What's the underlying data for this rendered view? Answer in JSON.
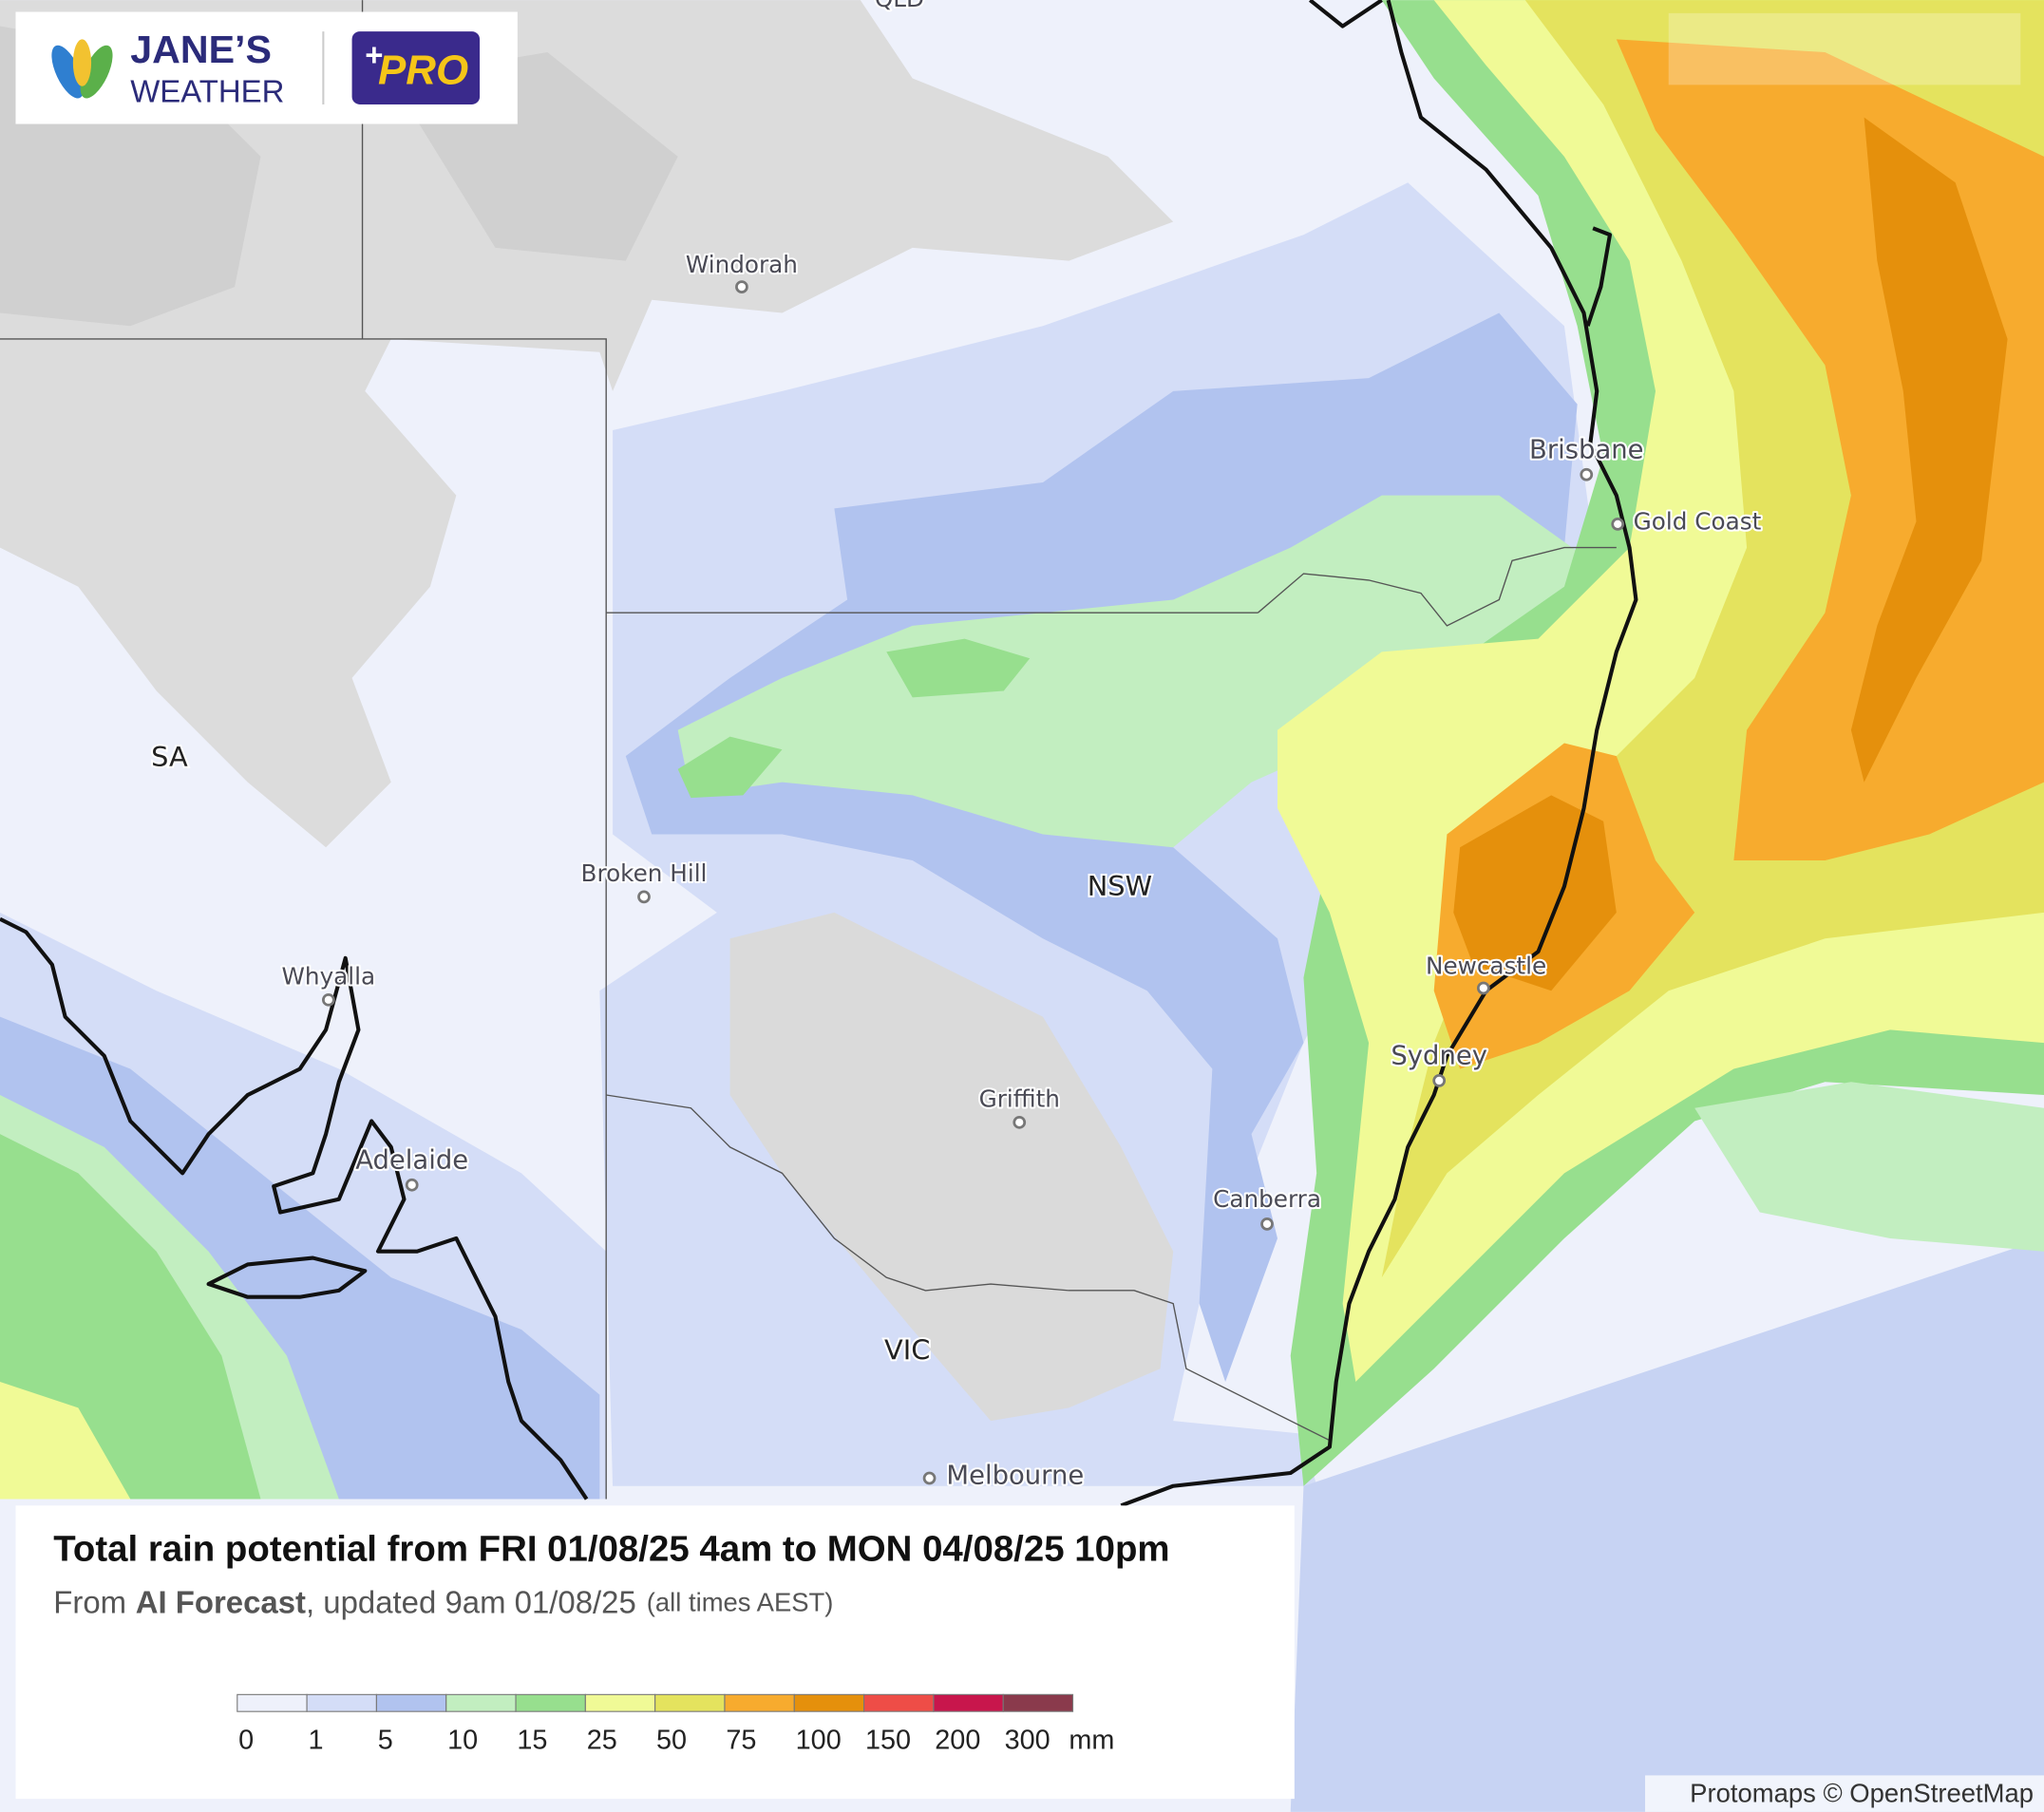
{
  "header": {
    "brand_line1": "JANE’S",
    "brand_line2": "WEATHER",
    "badge_plus": "+",
    "badge": "PRO"
  },
  "places": [
    "QLD",
    "Windorah",
    "Brisbane",
    "Gold Coast",
    "SA",
    "Broken Hill",
    "NSW",
    "Whyalla",
    "Newcastle",
    "Sydney",
    "Griffith",
    "Adelaide",
    "Canberra",
    "VIC",
    "Melbourne"
  ],
  "legend": {
    "title": "Total rain potential from FRI 01/08/25 4am to MON 04/08/25 10pm",
    "source_prefix": "From",
    "source": "AI Forecast",
    "updated": ", updated 9am 01/08/25",
    "timezone": "(all times AEST)",
    "items": [
      {
        "label": "0",
        "color": "#eef1fb"
      },
      {
        "label": "1",
        "color": "#d4ddf7"
      },
      {
        "label": "5",
        "color": "#b1c3ef"
      },
      {
        "label": "10",
        "color": "#c2eec0"
      },
      {
        "label": "15",
        "color": "#97df8e"
      },
      {
        "label": "25",
        "color": "#f0fa96"
      },
      {
        "label": "50",
        "color": "#e4e35e"
      },
      {
        "label": "75",
        "color": "#f7ab2e"
      },
      {
        "label": "100",
        "color": "#e5900c"
      },
      {
        "label": "150",
        "color": "#ee4d47"
      },
      {
        "label": "200",
        "color": "#c8164c"
      },
      {
        "label": "300",
        "color": "#8a3a4c"
      }
    ],
    "unit": "mm"
  },
  "attribution": "Protomaps © OpenStreetMap"
}
